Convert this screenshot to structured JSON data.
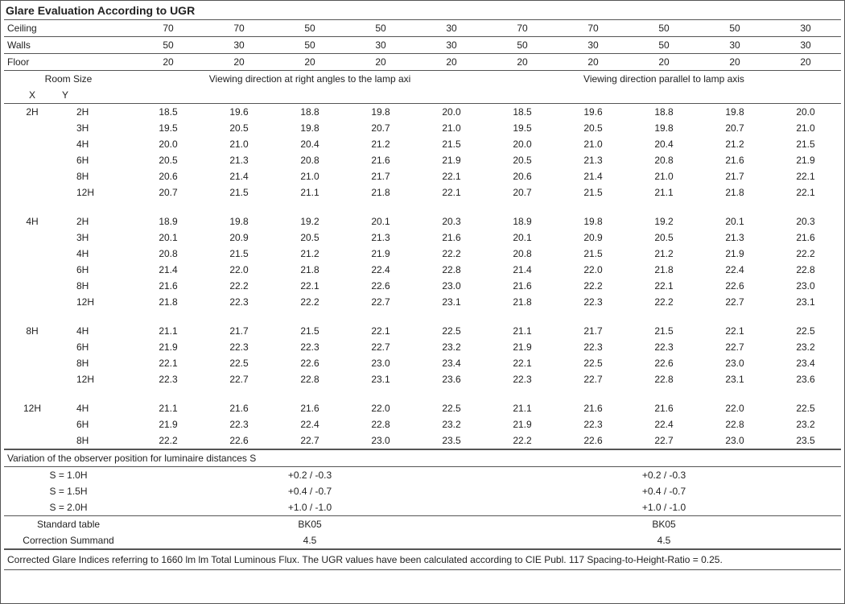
{
  "title": "Glare Evaluation According to UGR",
  "reflectance_labels": [
    "Ceiling",
    "Walls",
    "Floor"
  ],
  "reflectance_rows": [
    [
      "70",
      "70",
      "50",
      "50",
      "30",
      "70",
      "70",
      "50",
      "50",
      "30"
    ],
    [
      "50",
      "30",
      "50",
      "30",
      "30",
      "50",
      "30",
      "50",
      "30",
      "30"
    ],
    [
      "20",
      "20",
      "20",
      "20",
      "20",
      "20",
      "20",
      "20",
      "20",
      "20"
    ]
  ],
  "room_size_label": "Room Size",
  "x_label": "X",
  "y_label": "Y",
  "direction_right": "Viewing direction at right angles to the lamp axi",
  "direction_parallel": "Viewing direction parallel to lamp axis",
  "groups": [
    {
      "x": "2H",
      "rows": [
        {
          "y": "2H",
          "r": [
            "18.5",
            "19.6",
            "18.8",
            "19.8",
            "20.0"
          ],
          "p": [
            "18.5",
            "19.6",
            "18.8",
            "19.8",
            "20.0"
          ]
        },
        {
          "y": "3H",
          "r": [
            "19.5",
            "20.5",
            "19.8",
            "20.7",
            "21.0"
          ],
          "p": [
            "19.5",
            "20.5",
            "19.8",
            "20.7",
            "21.0"
          ]
        },
        {
          "y": "4H",
          "r": [
            "20.0",
            "21.0",
            "20.4",
            "21.2",
            "21.5"
          ],
          "p": [
            "20.0",
            "21.0",
            "20.4",
            "21.2",
            "21.5"
          ]
        },
        {
          "y": "6H",
          "r": [
            "20.5",
            "21.3",
            "20.8",
            "21.6",
            "21.9"
          ],
          "p": [
            "20.5",
            "21.3",
            "20.8",
            "21.6",
            "21.9"
          ]
        },
        {
          "y": "8H",
          "r": [
            "20.6",
            "21.4",
            "21.0",
            "21.7",
            "22.1"
          ],
          "p": [
            "20.6",
            "21.4",
            "21.0",
            "21.7",
            "22.1"
          ]
        },
        {
          "y": "12H",
          "r": [
            "20.7",
            "21.5",
            "21.1",
            "21.8",
            "22.1"
          ],
          "p": [
            "20.7",
            "21.5",
            "21.1",
            "21.8",
            "22.1"
          ]
        }
      ]
    },
    {
      "x": "4H",
      "rows": [
        {
          "y": "2H",
          "r": [
            "18.9",
            "19.8",
            "19.2",
            "20.1",
            "20.3"
          ],
          "p": [
            "18.9",
            "19.8",
            "19.2",
            "20.1",
            "20.3"
          ]
        },
        {
          "y": "3H",
          "r": [
            "20.1",
            "20.9",
            "20.5",
            "21.3",
            "21.6"
          ],
          "p": [
            "20.1",
            "20.9",
            "20.5",
            "21.3",
            "21.6"
          ]
        },
        {
          "y": "4H",
          "r": [
            "20.8",
            "21.5",
            "21.2",
            "21.9",
            "22.2"
          ],
          "p": [
            "20.8",
            "21.5",
            "21.2",
            "21.9",
            "22.2"
          ]
        },
        {
          "y": "6H",
          "r": [
            "21.4",
            "22.0",
            "21.8",
            "22.4",
            "22.8"
          ],
          "p": [
            "21.4",
            "22.0",
            "21.8",
            "22.4",
            "22.8"
          ]
        },
        {
          "y": "8H",
          "r": [
            "21.6",
            "22.2",
            "22.1",
            "22.6",
            "23.0"
          ],
          "p": [
            "21.6",
            "22.2",
            "22.1",
            "22.6",
            "23.0"
          ]
        },
        {
          "y": "12H",
          "r": [
            "21.8",
            "22.3",
            "22.2",
            "22.7",
            "23.1"
          ],
          "p": [
            "21.8",
            "22.3",
            "22.2",
            "22.7",
            "23.1"
          ]
        }
      ]
    },
    {
      "x": "8H",
      "rows": [
        {
          "y": "4H",
          "r": [
            "21.1",
            "21.7",
            "21.5",
            "22.1",
            "22.5"
          ],
          "p": [
            "21.1",
            "21.7",
            "21.5",
            "22.1",
            "22.5"
          ]
        },
        {
          "y": "6H",
          "r": [
            "21.9",
            "22.3",
            "22.3",
            "22.7",
            "23.2"
          ],
          "p": [
            "21.9",
            "22.3",
            "22.3",
            "22.7",
            "23.2"
          ]
        },
        {
          "y": "8H",
          "r": [
            "22.1",
            "22.5",
            "22.6",
            "23.0",
            "23.4"
          ],
          "p": [
            "22.1",
            "22.5",
            "22.6",
            "23.0",
            "23.4"
          ]
        },
        {
          "y": "12H",
          "r": [
            "22.3",
            "22.7",
            "22.8",
            "23.1",
            "23.6"
          ],
          "p": [
            "22.3",
            "22.7",
            "22.8",
            "23.1",
            "23.6"
          ]
        }
      ]
    },
    {
      "x": "12H",
      "rows": [
        {
          "y": "4H",
          "r": [
            "21.1",
            "21.6",
            "21.6",
            "22.0",
            "22.5"
          ],
          "p": [
            "21.1",
            "21.6",
            "21.6",
            "22.0",
            "22.5"
          ]
        },
        {
          "y": "6H",
          "r": [
            "21.9",
            "22.3",
            "22.4",
            "22.8",
            "23.2"
          ],
          "p": [
            "21.9",
            "22.3",
            "22.4",
            "22.8",
            "23.2"
          ]
        },
        {
          "y": "8H",
          "r": [
            "22.2",
            "22.6",
            "22.7",
            "23.0",
            "23.5"
          ],
          "p": [
            "22.2",
            "22.6",
            "22.7",
            "23.0",
            "23.5"
          ]
        }
      ]
    }
  ],
  "variation_label": "Variation of the observer position for luminaire distances S",
  "variation_rows": [
    {
      "s": "S = 1.0H",
      "r": "+0.2 / -0.3",
      "p": "+0.2 / -0.3"
    },
    {
      "s": "S = 1.5H",
      "r": "+0.4 / -0.7",
      "p": "+0.4 / -0.7"
    },
    {
      "s": "S = 2.0H",
      "r": "+1.0 / -1.0",
      "p": "+1.0 / -1.0"
    }
  ],
  "std_table_label": "Standard table",
  "std_table_r": "BK05",
  "std_table_p": "BK05",
  "correction_label": "Correction Summand",
  "correction_r": "4.5",
  "correction_p": "4.5",
  "footnote": "Corrected Glare Indices referring to 1660 lm lm Total Luminous Flux. The UGR values have been calculated according to CIE Publ. 117    Spacing-to-Height-Ratio = 0.25."
}
